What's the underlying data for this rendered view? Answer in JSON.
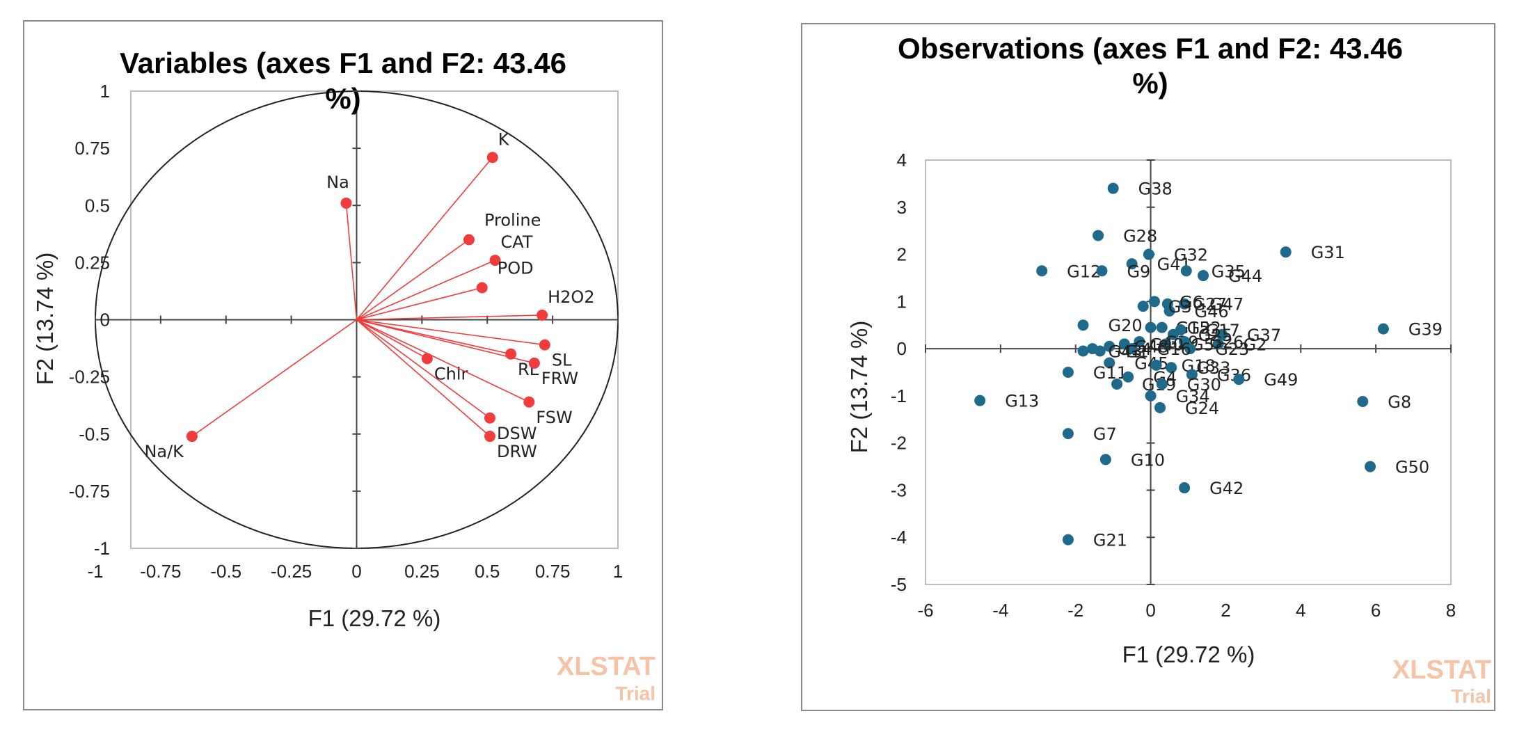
{
  "watermark": {
    "brand": "XLSTAT",
    "sub": "Trial"
  },
  "chart_data": [
    {
      "type": "scatter",
      "subtype": "correlation-circle",
      "title_line1": "Variables (axes F1 and F2: 43.46",
      "title_line2": "%)",
      "xlabel": "F1 (29.72 %)",
      "ylabel": "F2 (13.74 %)",
      "xlim": [
        -1,
        1
      ],
      "ylim": [
        -1,
        1
      ],
      "xticks": [
        -1,
        -0.75,
        -0.5,
        -0.25,
        0,
        0.25,
        0.5,
        0.75,
        1
      ],
      "xtick_labels": [
        "-1",
        "-0.75",
        "-0.5",
        "-0.25",
        "0",
        "0.25",
        "0.5",
        "0.75",
        "1"
      ],
      "yticks": [
        -1,
        -0.75,
        -0.5,
        -0.25,
        0,
        0.25,
        0.5,
        0.75,
        1
      ],
      "ytick_labels": [
        "-1",
        "-0.75",
        "-0.5",
        "-0.25",
        "0",
        "0.25",
        "0.5",
        "0.75",
        "1"
      ],
      "color": "#f03c3c",
      "points": [
        {
          "label": "K",
          "x": 0.52,
          "y": 0.71,
          "pos": "ne"
        },
        {
          "label": "Na",
          "x": -0.04,
          "y": 0.51,
          "pos": "n"
        },
        {
          "label": "Proline",
          "x": 0.43,
          "y": 0.35,
          "pos": "ne2"
        },
        {
          "label": "CAT",
          "x": 0.53,
          "y": 0.26,
          "pos": "ne"
        },
        {
          "label": "POD",
          "x": 0.48,
          "y": 0.14,
          "pos": "ne2"
        },
        {
          "label": "H2O2",
          "x": 0.71,
          "y": 0.02,
          "pos": "ne"
        },
        {
          "label": "SL",
          "x": 0.72,
          "y": -0.11,
          "pos": "se"
        },
        {
          "label": "RL",
          "x": 0.59,
          "y": -0.15,
          "pos": "se"
        },
        {
          "label": "FRW",
          "x": 0.68,
          "y": -0.19,
          "pos": "se"
        },
        {
          "label": "Chlr",
          "x": 0.27,
          "y": -0.17,
          "pos": "se"
        },
        {
          "label": "FSW",
          "x": 0.66,
          "y": -0.36,
          "pos": "se"
        },
        {
          "label": "DSW",
          "x": 0.51,
          "y": -0.43,
          "pos": "se"
        },
        {
          "label": "DRW",
          "x": 0.51,
          "y": -0.51,
          "pos": "se"
        },
        {
          "label": "Na/K",
          "x": -0.63,
          "y": -0.51,
          "pos": "sw"
        }
      ]
    },
    {
      "type": "scatter",
      "title_line1": "Observations (axes F1 and F2: 43.46",
      "title_line2": "%)",
      "xlabel": "F1 (29.72 %)",
      "ylabel": "F2 (13.74 %)",
      "xlim": [
        -6,
        8
      ],
      "ylim": [
        -5,
        4
      ],
      "xticks": [
        -6,
        -4,
        -2,
        0,
        2,
        4,
        6,
        8
      ],
      "xtick_labels": [
        "-6",
        "-4",
        "-2",
        "0",
        "2",
        "4",
        "6",
        "8"
      ],
      "yticks": [
        -5,
        -4,
        -3,
        -2,
        -1,
        0,
        1,
        2,
        3,
        4
      ],
      "ytick_labels": [
        "-5",
        "-4",
        "-3",
        "-2",
        "-1",
        "0",
        "1",
        "2",
        "3",
        "4"
      ],
      "color": "#1f6a8a",
      "points": [
        {
          "label": "G38",
          "x": -1.0,
          "y": 3.4
        },
        {
          "label": "G28",
          "x": -1.4,
          "y": 2.4
        },
        {
          "label": "G32",
          "x": -0.05,
          "y": 2.0
        },
        {
          "label": "G41",
          "x": -0.5,
          "y": 1.8
        },
        {
          "label": "G31",
          "x": 3.6,
          "y": 2.05
        },
        {
          "label": "G12",
          "x": -2.9,
          "y": 1.65
        },
        {
          "label": "G9",
          "x": -1.3,
          "y": 1.65
        },
        {
          "label": "G35",
          "x": 0.95,
          "y": 1.65
        },
        {
          "label": "G44",
          "x": 1.4,
          "y": 1.55
        },
        {
          "label": "G27",
          "x": 0.45,
          "y": 0.95
        },
        {
          "label": "G47",
          "x": 0.9,
          "y": 0.95
        },
        {
          "label": "G46",
          "x": 0.5,
          "y": 0.8
        },
        {
          "label": "G6",
          "x": 0.1,
          "y": 1.0
        },
        {
          "label": "G3",
          "x": -0.2,
          "y": 0.9
        },
        {
          "label": "G39",
          "x": 6.2,
          "y": 0.42
        },
        {
          "label": "G20",
          "x": -1.8,
          "y": 0.5
        },
        {
          "label": "G22",
          "x": 0.3,
          "y": 0.45
        },
        {
          "label": "G15",
          "x": 0.0,
          "y": 0.45
        },
        {
          "label": "G17",
          "x": 0.8,
          "y": 0.4
        },
        {
          "label": "G37",
          "x": 1.9,
          "y": 0.3
        },
        {
          "label": "G2",
          "x": 1.8,
          "y": 0.1
        },
        {
          "label": "G25",
          "x": 0.6,
          "y": 0.3
        },
        {
          "label": "G29",
          "x": -0.3,
          "y": 0.15
        },
        {
          "label": "G5",
          "x": 0.4,
          "y": 0.1
        },
        {
          "label": "G26",
          "x": 0.9,
          "y": 0.15
        },
        {
          "label": "G23",
          "x": 1.05,
          "y": 0.0
        },
        {
          "label": "G14",
          "x": -1.55,
          "y": 0.0
        },
        {
          "label": "G48",
          "x": -1.1,
          "y": 0.05
        },
        {
          "label": "G40",
          "x": -0.7,
          "y": 0.1
        },
        {
          "label": "G16",
          "x": -0.5,
          "y": 0.0
        },
        {
          "label": "G43",
          "x": -1.8,
          "y": -0.05
        },
        {
          "label": "G1",
          "x": -1.35,
          "y": -0.05
        },
        {
          "label": "G45",
          "x": -1.1,
          "y": -0.3
        },
        {
          "label": "G18",
          "x": 0.15,
          "y": -0.35
        },
        {
          "label": "G33",
          "x": 0.55,
          "y": -0.4
        },
        {
          "label": "G36",
          "x": 1.1,
          "y": -0.55
        },
        {
          "label": "G49",
          "x": 2.35,
          "y": -0.65
        },
        {
          "label": "G11",
          "x": -2.2,
          "y": -0.5
        },
        {
          "label": "G4",
          "x": -0.6,
          "y": -0.6
        },
        {
          "label": "G19",
          "x": -0.9,
          "y": -0.75
        },
        {
          "label": "G30",
          "x": 0.3,
          "y": -0.75
        },
        {
          "label": "G34",
          "x": 0.0,
          "y": -1.0
        },
        {
          "label": "G24",
          "x": 0.25,
          "y": -1.25
        },
        {
          "label": "G13",
          "x": -4.55,
          "y": -1.1
        },
        {
          "label": "G8",
          "x": 5.65,
          "y": -1.12
        },
        {
          "label": "G7",
          "x": -2.2,
          "y": -1.8
        },
        {
          "label": "G10",
          "x": -1.2,
          "y": -2.35
        },
        {
          "label": "G42",
          "x": 0.9,
          "y": -2.95
        },
        {
          "label": "G50",
          "x": 5.85,
          "y": -2.5
        },
        {
          "label": "G21",
          "x": -2.2,
          "y": -4.05
        }
      ]
    }
  ]
}
